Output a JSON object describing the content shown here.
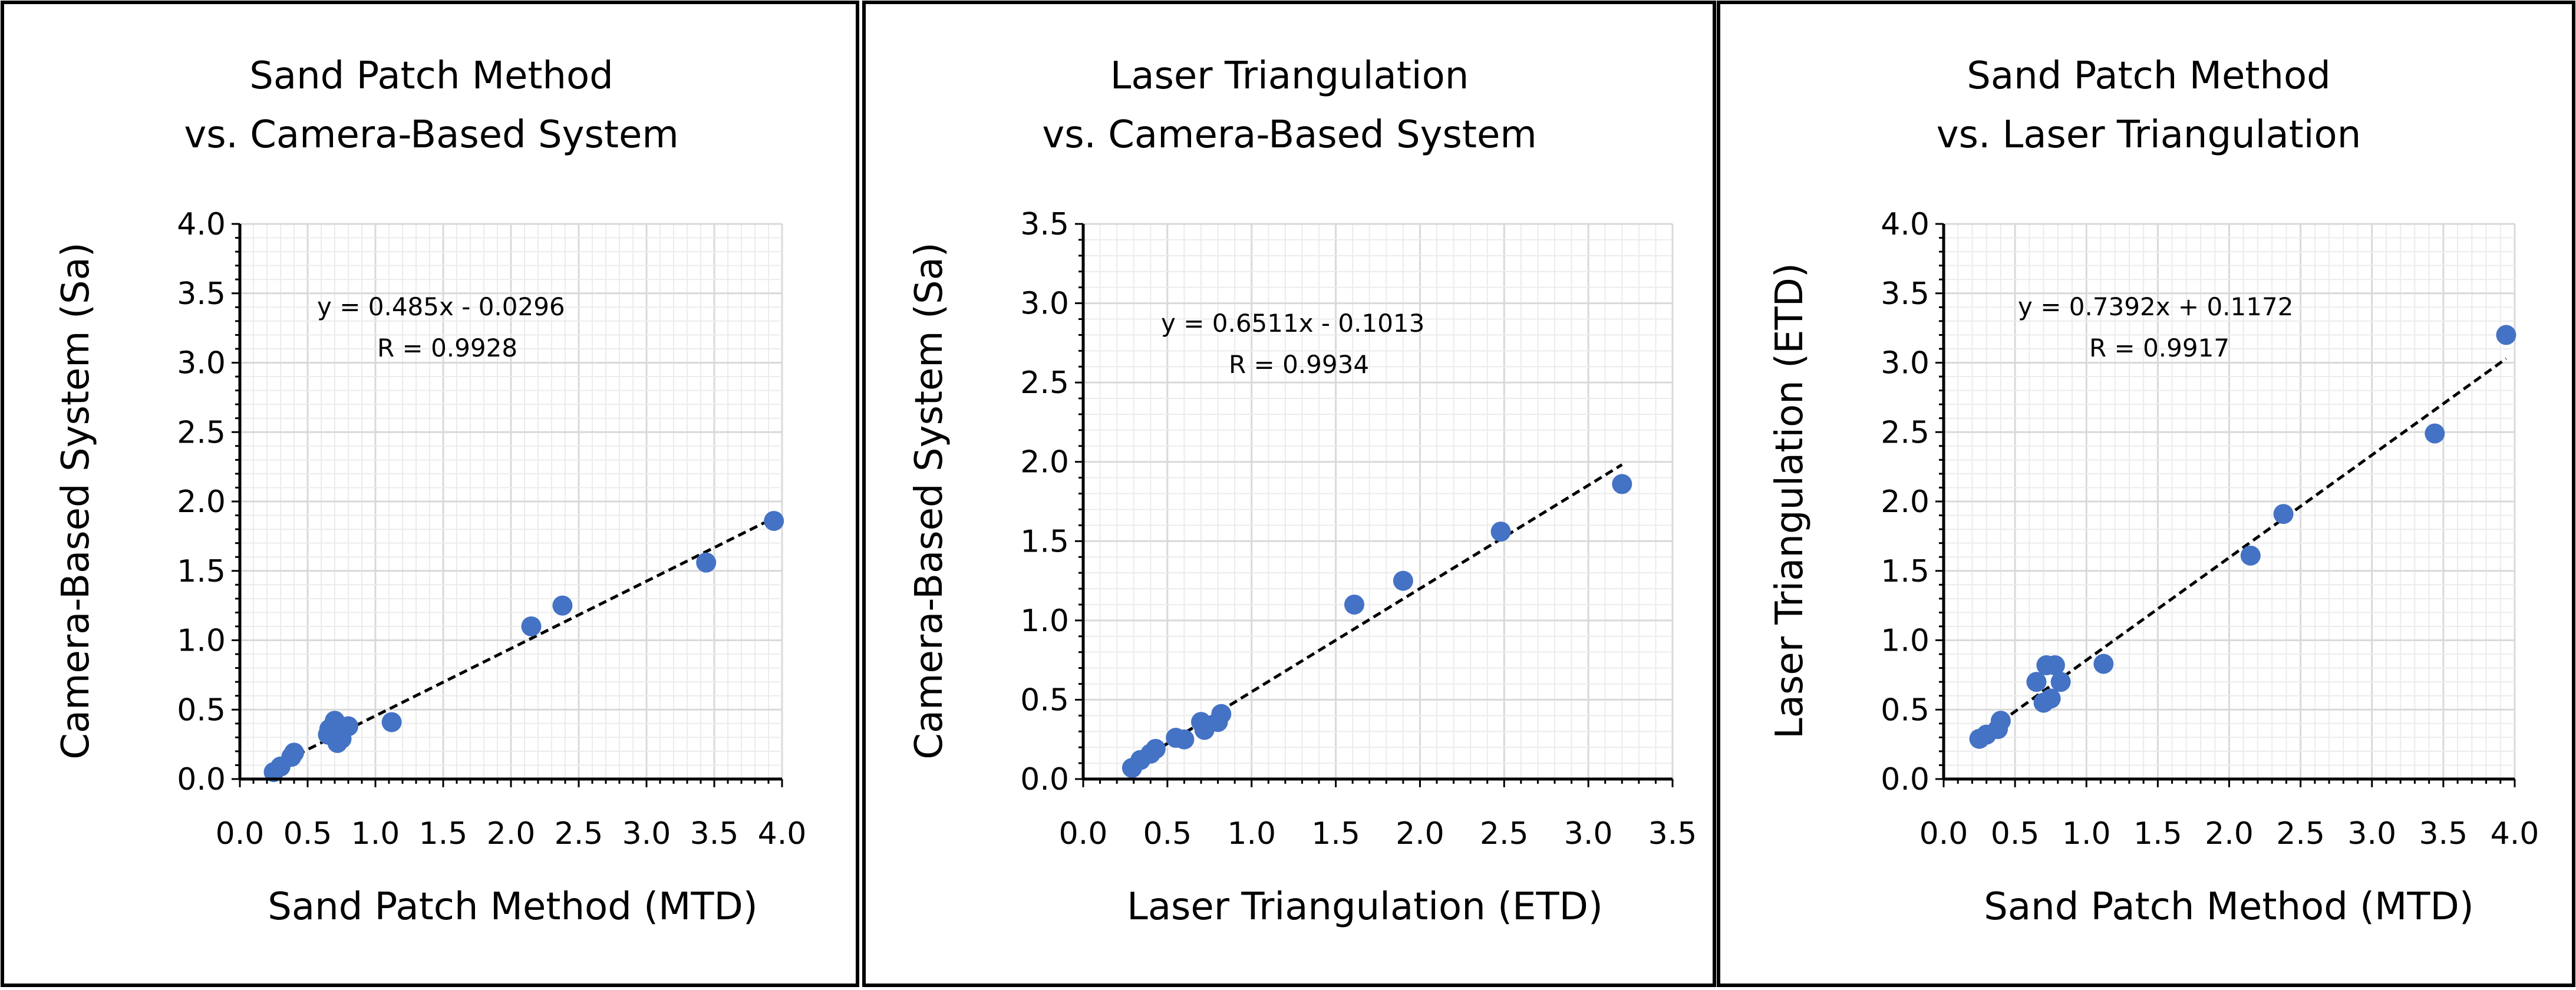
{
  "colors": {
    "point": "#4472C4",
    "axis": "#000000",
    "grid_major": "#d9d9d9",
    "grid_minor": "#ececec",
    "trendline": "#000000",
    "background": "#ffffff"
  },
  "chart_data": [
    {
      "type": "scatter",
      "title": [
        "Sand Patch Method",
        "vs. Camera-Based System"
      ],
      "xlabel": "Sand Patch Method (MTD)",
      "ylabel": "Camera-Based System (Sa)",
      "xlim": [
        0,
        4
      ],
      "ylim": [
        0,
        4
      ],
      "xmajor": 0.5,
      "ymajor": 0.5,
      "xticks": [
        "0.0",
        "0.5",
        "1.0",
        "1.5",
        "2.0",
        "2.5",
        "3.0",
        "3.5",
        "4.0"
      ],
      "yticks": [
        "0.0",
        "0.5",
        "1.0",
        "1.5",
        "2.0",
        "2.5",
        "3.0",
        "3.5",
        "4.0"
      ],
      "grid": true,
      "equation": "y = 0.485x - 0.0296",
      "r_label": "R = 0.9928",
      "trend": {
        "slope": 0.485,
        "intercept": -0.0296,
        "x_range": [
          0.25,
          3.94
        ]
      },
      "x": [
        0.25,
        0.3,
        0.38,
        0.4,
        0.65,
        0.66,
        0.7,
        0.72,
        0.75,
        0.8,
        1.12,
        2.15,
        2.38,
        3.44,
        3.94
      ],
      "y": [
        0.05,
        0.09,
        0.16,
        0.19,
        0.32,
        0.36,
        0.42,
        0.26,
        0.29,
        0.38,
        0.41,
        1.1,
        1.25,
        1.56,
        1.86
      ]
    },
    {
      "type": "scatter",
      "title": [
        "Laser Triangulation",
        "vs. Camera-Based System"
      ],
      "xlabel": "Laser Triangulation (ETD)",
      "ylabel": "Camera-Based System (Sa)",
      "xlim": [
        0,
        3.5
      ],
      "ylim": [
        0,
        3.5
      ],
      "xmajor": 0.5,
      "ymajor": 0.5,
      "xticks": [
        "0.0",
        "0.5",
        "1.0",
        "1.5",
        "2.0",
        "2.5",
        "3.0",
        "3.5"
      ],
      "yticks": [
        "0.0",
        "0.5",
        "1.0",
        "1.5",
        "2.0",
        "2.5",
        "3.0",
        "3.5"
      ],
      "grid": true,
      "equation": "y = 0.6511x - 0.1013",
      "r_label": "R = 0.9934",
      "trend": {
        "slope": 0.6511,
        "intercept": -0.1013,
        "x_range": [
          0.28,
          3.2
        ]
      },
      "x": [
        0.29,
        0.34,
        0.4,
        0.43,
        0.55,
        0.6,
        0.7,
        0.72,
        0.8,
        0.82,
        1.61,
        1.9,
        2.48,
        3.2
      ],
      "y": [
        0.07,
        0.12,
        0.16,
        0.19,
        0.26,
        0.25,
        0.36,
        0.31,
        0.36,
        0.41,
        1.1,
        1.25,
        1.56,
        1.86
      ]
    },
    {
      "type": "scatter",
      "title": [
        "Sand Patch Method",
        "vs. Laser Triangulation"
      ],
      "xlabel": "Sand Patch Method (MTD)",
      "ylabel": "Laser Triangulation (ETD)",
      "xlim": [
        0,
        4
      ],
      "ylim": [
        0,
        4
      ],
      "xmajor": 0.5,
      "ymajor": 0.5,
      "xticks": [
        "0.0",
        "0.5",
        "1.0",
        "1.5",
        "2.0",
        "2.5",
        "3.0",
        "3.5",
        "4.0"
      ],
      "yticks": [
        "0.0",
        "0.5",
        "1.0",
        "1.5",
        "2.0",
        "2.5",
        "3.0",
        "3.5",
        "4.0"
      ],
      "grid": true,
      "equation": "y = 0.7392x + 0.1172",
      "r_label": "R = 0.9917",
      "trend": {
        "slope": 0.7392,
        "intercept": 0.1172,
        "x_range": [
          0.25,
          3.94
        ]
      },
      "x": [
        0.25,
        0.3,
        0.38,
        0.4,
        0.65,
        0.7,
        0.72,
        0.75,
        0.78,
        0.82,
        1.12,
        2.15,
        2.38,
        3.44,
        3.94
      ],
      "y": [
        0.29,
        0.32,
        0.36,
        0.42,
        0.7,
        0.55,
        0.82,
        0.58,
        0.82,
        0.7,
        0.83,
        1.61,
        1.91,
        2.49,
        3.2
      ]
    }
  ]
}
